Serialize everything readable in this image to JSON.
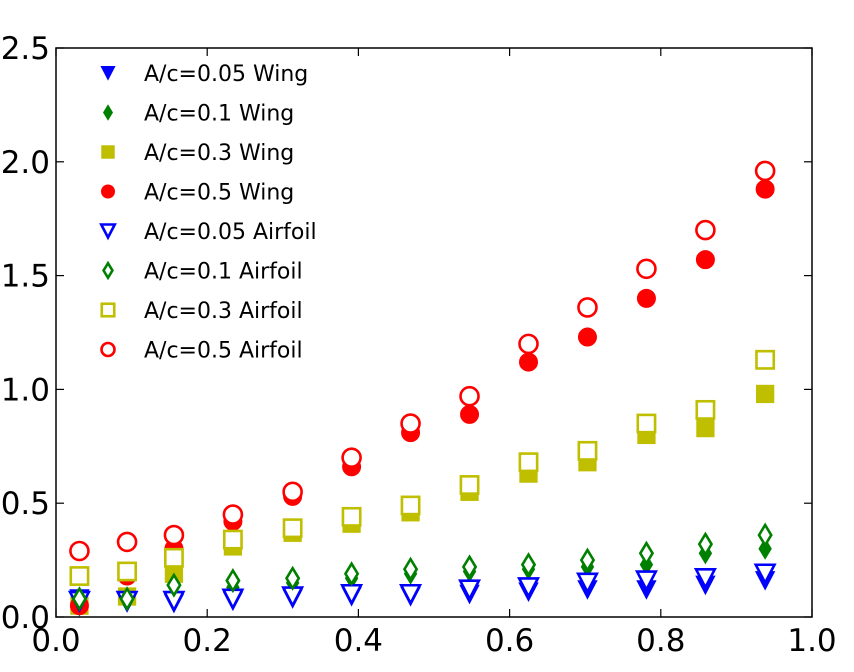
{
  "chart_data": {
    "type": "scatter",
    "title": "",
    "xlabel": "",
    "ylabel": "",
    "xlim": [
      0.0,
      1.0
    ],
    "ylim": [
      0.0,
      2.5
    ],
    "x_ticks": [
      "0.0",
      "0.2",
      "0.4",
      "0.6",
      "0.8",
      "1.0"
    ],
    "y_ticks": [
      "0.0",
      "0.5",
      "1.0",
      "1.5",
      "2.0",
      "2.5"
    ],
    "grid": false,
    "legend_position": "top-left",
    "x": [
      0.031,
      0.094,
      0.156,
      0.234,
      0.313,
      0.391,
      0.469,
      0.547,
      0.625,
      0.703,
      0.781,
      0.859,
      0.938
    ],
    "series": [
      {
        "name": "A/c=0.05 Wing",
        "marker": "triangle-down",
        "filled": true,
        "color": "#0000ff",
        "values": [
          0.08,
          0.07,
          0.06,
          0.07,
          0.08,
          0.09,
          0.09,
          0.1,
          0.11,
          0.12,
          0.12,
          0.14,
          0.16
        ]
      },
      {
        "name": "A/c=0.1 Wing",
        "marker": "diamond",
        "filled": true,
        "color": "#008000",
        "values": [
          0.05,
          0.07,
          0.09,
          0.13,
          0.15,
          0.17,
          0.19,
          0.2,
          0.21,
          0.22,
          0.23,
          0.28,
          0.3
        ]
      },
      {
        "name": "A/c=0.3 Wing",
        "marker": "square",
        "filled": true,
        "color": "#bfbf00",
        "values": [
          0.05,
          0.09,
          0.19,
          0.31,
          0.37,
          0.41,
          0.46,
          0.55,
          0.63,
          0.68,
          0.8,
          0.83,
          0.98
        ]
      },
      {
        "name": "A/c=0.5 Wing",
        "marker": "circle",
        "filled": true,
        "color": "#ff0000",
        "values": [
          0.05,
          0.18,
          0.3,
          0.42,
          0.53,
          0.66,
          0.81,
          0.89,
          1.12,
          1.23,
          1.4,
          1.57,
          1.88
        ]
      },
      {
        "name": "A/c=0.05 Airfoil",
        "marker": "triangle-down",
        "filled": false,
        "color": "#0000ff",
        "values": [
          0.07,
          0.07,
          0.07,
          0.08,
          0.09,
          0.1,
          0.1,
          0.12,
          0.13,
          0.15,
          0.16,
          0.17,
          0.19
        ]
      },
      {
        "name": "A/c=0.1 Airfoil",
        "marker": "diamond",
        "filled": false,
        "color": "#008000",
        "values": [
          0.08,
          0.08,
          0.14,
          0.16,
          0.17,
          0.19,
          0.21,
          0.22,
          0.23,
          0.25,
          0.28,
          0.32,
          0.36
        ]
      },
      {
        "name": "A/c=0.3 Airfoil",
        "marker": "square",
        "filled": false,
        "color": "#bfbf00",
        "values": [
          0.18,
          0.2,
          0.26,
          0.34,
          0.39,
          0.44,
          0.49,
          0.58,
          0.68,
          0.73,
          0.85,
          0.91,
          1.13
        ]
      },
      {
        "name": "A/c=0.5 Airfoil",
        "marker": "circle",
        "filled": false,
        "color": "#ff0000",
        "values": [
          0.29,
          0.33,
          0.36,
          0.45,
          0.55,
          0.7,
          0.85,
          0.97,
          1.2,
          1.36,
          1.53,
          1.7,
          1.96
        ]
      }
    ]
  }
}
